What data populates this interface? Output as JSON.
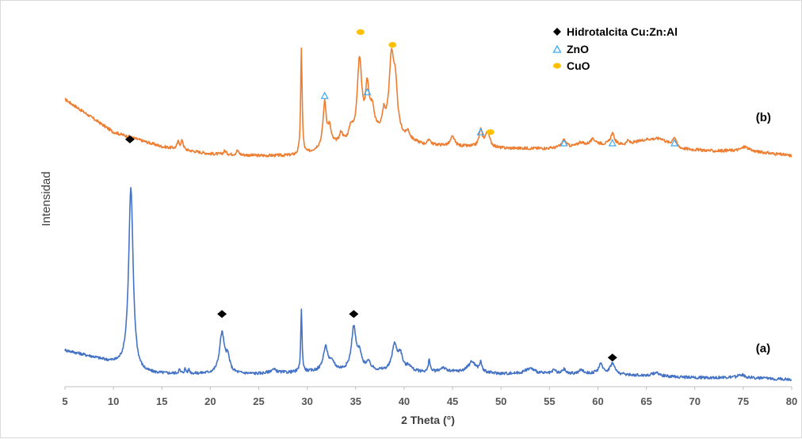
{
  "chart_data": {
    "type": "line",
    "xlabel": "2 Theta (°)",
    "ylabel": "Intensidad",
    "xlim": [
      5,
      80
    ],
    "xticks": [
      5,
      10,
      15,
      20,
      25,
      30,
      35,
      40,
      45,
      50,
      55,
      60,
      65,
      70,
      75,
      80
    ],
    "y_axis_values_shown": false,
    "grid": false,
    "legend_position": "top-right",
    "legend": [
      {
        "marker": "diamond",
        "color": "#000000",
        "label": "Hidrotalcita Cu:Zn:Al"
      },
      {
        "marker": "triangle",
        "color": "#3fa9f5",
        "label": "ZnO"
      },
      {
        "marker": "circle",
        "color": "#ffc000",
        "label": "CuO"
      }
    ],
    "series": [
      {
        "name": "(b)",
        "color": "#ed7d31",
        "baseline": [
          [
            5,
            0.79
          ],
          [
            10,
            0.7
          ],
          [
            15,
            0.66
          ],
          [
            20,
            0.64
          ],
          [
            25,
            0.635
          ],
          [
            29,
            0.635
          ],
          [
            30,
            0.64
          ],
          [
            32,
            0.66
          ],
          [
            34,
            0.67
          ],
          [
            36,
            0.69
          ],
          [
            38,
            0.7
          ],
          [
            40,
            0.68
          ],
          [
            42,
            0.665
          ],
          [
            46,
            0.66
          ],
          [
            50,
            0.655
          ],
          [
            55,
            0.655
          ],
          [
            60,
            0.665
          ],
          [
            63,
            0.665
          ],
          [
            65,
            0.68
          ],
          [
            66.5,
            0.682
          ],
          [
            68,
            0.655
          ],
          [
            72,
            0.648
          ],
          [
            75,
            0.65
          ],
          [
            80,
            0.635
          ]
        ],
        "peaks": [
          [
            16.7,
            0.02,
            0.15
          ],
          [
            17.1,
            0.025,
            0.12
          ],
          [
            21.5,
            0.01,
            0.15
          ],
          [
            22.8,
            0.012,
            0.15
          ],
          [
            29.4,
            0.29,
            0.09
          ],
          [
            31.8,
            0.12,
            0.2
          ],
          [
            32.3,
            0.045,
            0.2
          ],
          [
            33.5,
            0.025,
            0.2
          ],
          [
            34.5,
            0.03,
            0.2
          ],
          [
            35.4,
            0.21,
            0.28
          ],
          [
            36.2,
            0.12,
            0.22
          ],
          [
            36.7,
            0.06,
            0.25
          ],
          [
            37.9,
            0.04,
            0.15
          ],
          [
            38.7,
            0.2,
            0.3
          ],
          [
            39.1,
            0.11,
            0.25
          ],
          [
            40.4,
            0.02,
            0.2
          ],
          [
            42.6,
            0.015,
            0.15
          ],
          [
            45.0,
            0.025,
            0.25
          ],
          [
            47.9,
            0.045,
            0.2
          ],
          [
            48.6,
            0.04,
            0.3
          ],
          [
            56.5,
            0.02,
            0.25
          ],
          [
            58.2,
            0.01,
            0.3
          ],
          [
            59.5,
            0.015,
            0.4
          ],
          [
            61.5,
            0.03,
            0.25
          ],
          [
            63.1,
            0.01,
            0.2
          ],
          [
            67.9,
            0.03,
            0.25
          ],
          [
            75.2,
            0.01,
            0.4
          ]
        ]
      },
      {
        "name": "(a)",
        "color": "#4472c4",
        "baseline": [
          [
            5,
            0.1
          ],
          [
            8,
            0.08
          ],
          [
            11,
            0.055
          ],
          [
            12.5,
            0.035
          ],
          [
            15,
            0.035
          ],
          [
            20,
            0.035
          ],
          [
            25,
            0.035
          ],
          [
            30,
            0.04
          ],
          [
            35,
            0.045
          ],
          [
            40,
            0.04
          ],
          [
            45,
            0.04
          ],
          [
            50,
            0.035
          ],
          [
            55,
            0.035
          ],
          [
            60,
            0.035
          ],
          [
            65,
            0.03
          ],
          [
            70,
            0.025
          ],
          [
            75,
            0.025
          ],
          [
            80,
            0.02
          ]
        ],
        "peaks": [
          [
            11.8,
            0.5,
            0.28
          ],
          [
            16.8,
            0.01,
            0.1
          ],
          [
            17.4,
            0.012,
            0.1
          ],
          [
            17.8,
            0.01,
            0.1
          ],
          [
            21.2,
            0.11,
            0.3
          ],
          [
            21.8,
            0.04,
            0.25
          ],
          [
            26.5,
            0.01,
            0.4
          ],
          [
            29.4,
            0.17,
            0.08
          ],
          [
            31.9,
            0.065,
            0.3
          ],
          [
            32.6,
            0.02,
            0.3
          ],
          [
            34.8,
            0.115,
            0.28
          ],
          [
            35.4,
            0.04,
            0.25
          ],
          [
            36.3,
            0.02,
            0.3
          ],
          [
            39.0,
            0.07,
            0.3
          ],
          [
            39.6,
            0.045,
            0.3
          ],
          [
            40.5,
            0.015,
            0.3
          ],
          [
            42.6,
            0.035,
            0.1
          ],
          [
            44.0,
            0.012,
            0.3
          ],
          [
            47.0,
            0.03,
            0.5
          ],
          [
            47.9,
            0.025,
            0.15
          ],
          [
            53.0,
            0.015,
            0.6
          ],
          [
            55.5,
            0.01,
            0.2
          ],
          [
            56.5,
            0.012,
            0.2
          ],
          [
            58.3,
            0.01,
            0.3
          ],
          [
            60.3,
            0.025,
            0.3
          ],
          [
            61.5,
            0.03,
            0.3
          ],
          [
            66.0,
            0.01,
            0.4
          ],
          [
            74.8,
            0.008,
            0.4
          ]
        ]
      }
    ],
    "series_labels": [
      {
        "text": "(b)",
        "x": 76.3,
        "y": 0.73
      },
      {
        "text": "(a)",
        "x": 76.3,
        "y": 0.095
      }
    ],
    "markers": {
      "hidrotalcita": [
        [
          11.7,
          0.68
        ],
        [
          21.2,
          0.2
        ],
        [
          34.8,
          0.2
        ],
        [
          61.5,
          0.08
        ]
      ],
      "zno": [
        [
          31.8,
          0.8
        ],
        [
          36.2,
          0.81
        ],
        [
          47.9,
          0.7
        ],
        [
          56.5,
          0.67
        ],
        [
          61.5,
          0.67
        ],
        [
          67.9,
          0.67
        ]
      ],
      "cuo": [
        [
          35.5,
          0.975
        ],
        [
          38.8,
          0.94
        ],
        [
          48.9,
          0.7
        ]
      ]
    }
  }
}
